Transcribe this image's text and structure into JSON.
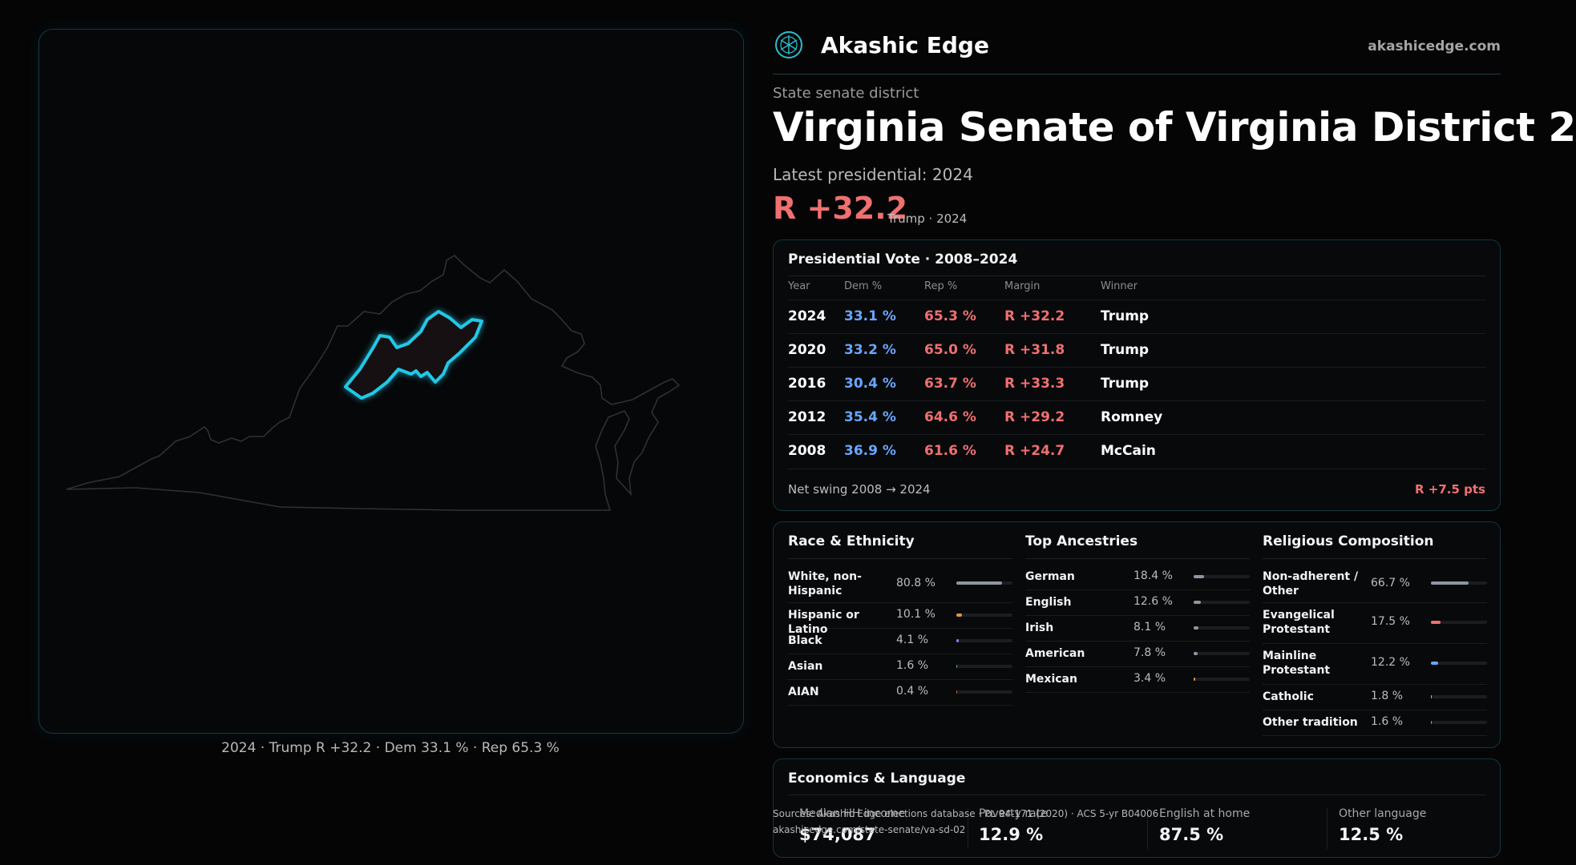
{
  "brand": {
    "name": "Akashic Edge",
    "url": "akashicedge.com"
  },
  "header": {
    "kicker": "State senate district",
    "title": "Virginia Senate of Virginia District 2",
    "latest": "Latest presidential: 2024",
    "margin": "R +32.2",
    "margin_sub": "Trump · 2024"
  },
  "map": {
    "caption": "2024 · Trump R +32.2 · Dem 33.1 % · Rep 65.3 %"
  },
  "presidential": {
    "title": "Presidential Vote · 2008–2024",
    "columns": [
      "Year",
      "Dem %",
      "Rep %",
      "Margin",
      "Winner"
    ],
    "rows": [
      {
        "year": "2024",
        "dem": "33.1 %",
        "rep": "65.3 %",
        "margin": "R +32.2",
        "winner": "Trump"
      },
      {
        "year": "2020",
        "dem": "33.2 %",
        "rep": "65.0 %",
        "margin": "R +31.8",
        "winner": "Trump"
      },
      {
        "year": "2016",
        "dem": "30.4 %",
        "rep": "63.7 %",
        "margin": "R +33.3",
        "winner": "Trump"
      },
      {
        "year": "2012",
        "dem": "35.4 %",
        "rep": "64.6 %",
        "margin": "R +29.2",
        "winner": "Romney"
      },
      {
        "year": "2008",
        "dem": "36.9 %",
        "rep": "61.6 %",
        "margin": "R +24.7",
        "winner": "McCain"
      }
    ],
    "swing_label": "Net swing 2008 → 2024",
    "swing_value": "R +7.5 pts"
  },
  "demographics": [
    {
      "title": "Race & Ethnicity",
      "items": [
        {
          "label": "White, non-Hispanic",
          "pct": "80.8 %",
          "value": 80.8,
          "color": "#8f96a3"
        },
        {
          "label": "Hispanic or Latino",
          "pct": "10.1 %",
          "value": 10.1,
          "color": "#e09a3a"
        },
        {
          "label": "Black",
          "pct": "4.1 %",
          "value": 4.1,
          "color": "#8a7cf0"
        },
        {
          "label": "Asian",
          "pct": "1.6 %",
          "value": 1.6,
          "color": "#3fb48a"
        },
        {
          "label": "AIAN",
          "pct": "0.4 %",
          "value": 0.4,
          "color": "#c0603a"
        }
      ]
    },
    {
      "title": "Top Ancestries",
      "items": [
        {
          "label": "German",
          "pct": "18.4 %",
          "value": 18.4,
          "color": "#8f96a3"
        },
        {
          "label": "English",
          "pct": "12.6 %",
          "value": 12.6,
          "color": "#8f96a3"
        },
        {
          "label": "Irish",
          "pct": "8.1 %",
          "value": 8.1,
          "color": "#8f96a3"
        },
        {
          "label": "American",
          "pct": "7.8 %",
          "value": 7.8,
          "color": "#8f96a3"
        },
        {
          "label": "Mexican",
          "pct": "3.4 %",
          "value": 3.4,
          "color": "#e09a3a"
        }
      ]
    },
    {
      "title": "Religious Composition",
      "items": [
        {
          "label": "Non-adherent / Other",
          "pct": "66.7 %",
          "value": 66.7,
          "color": "#8f96a3"
        },
        {
          "label": "Evangelical Protestant",
          "pct": "17.5 %",
          "value": 17.5,
          "color": "#f07070"
        },
        {
          "label": "Mainline Protestant",
          "pct": "12.2 %",
          "value": 12.2,
          "color": "#6aa6ff"
        },
        {
          "label": "Catholic",
          "pct": "1.8 %",
          "value": 1.8,
          "color": "#e0b040"
        },
        {
          "label": "Other tradition",
          "pct": "1.6 %",
          "value": 1.6,
          "color": "#8f96a3"
        }
      ]
    }
  ],
  "economics": {
    "title": "Economics & Language",
    "items": [
      {
        "label": "Median HH income",
        "value": "$74,087"
      },
      {
        "label": "Poverty rate",
        "value": "12.9 %"
      },
      {
        "label": "English at home",
        "value": "87.5 %"
      },
      {
        "label": "Other language",
        "value": "12.5 %"
      }
    ]
  },
  "source": {
    "line1": "Sources: Akashic Edge elections database · PL 94-171 (2020) · ACS 5-yr B04006",
    "line2": "akashicedge.com/state-senate/va-sd-02"
  }
}
